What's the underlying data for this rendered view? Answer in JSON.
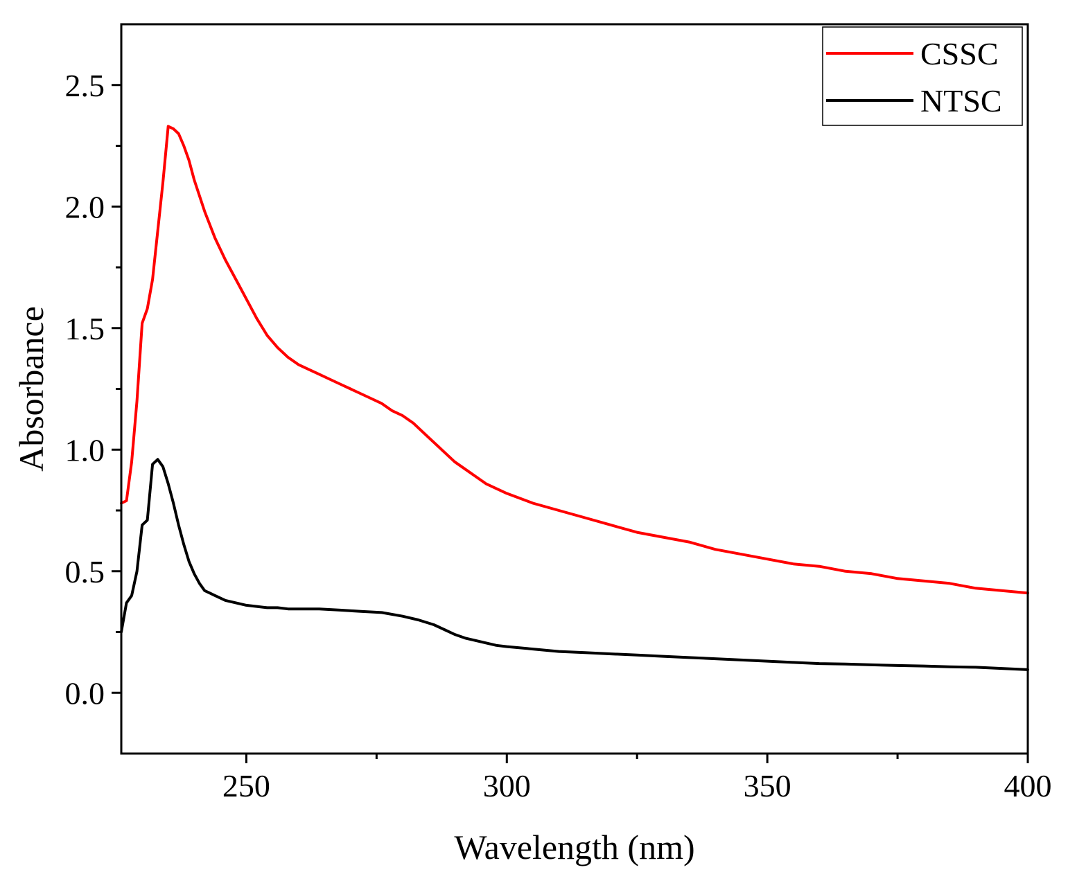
{
  "chart_data": {
    "type": "line",
    "title": "",
    "xlabel": "Wavelength (nm)",
    "ylabel": "Absorbance",
    "xlim": [
      226,
      400
    ],
    "ylim": [
      -0.25,
      2.75
    ],
    "x_major_ticks": [
      250,
      300,
      350,
      400
    ],
    "x_minor_ticks": [
      275,
      325,
      375
    ],
    "y_major_ticks": [
      0.0,
      0.5,
      1.0,
      1.5,
      2.0,
      2.5
    ],
    "y_minor_ticks": [
      0.25,
      0.75,
      1.25,
      1.75,
      2.25
    ],
    "x_tick_labels": [
      "250",
      "300",
      "350",
      "400"
    ],
    "y_tick_labels": [
      "0.0",
      "0.5",
      "1.0",
      "1.5",
      "2.0",
      "2.5"
    ],
    "grid": false,
    "legend_position": "top-right",
    "series": [
      {
        "name": "CSSC",
        "color": "#ff0000",
        "points": [
          [
            226,
            0.78
          ],
          [
            227,
            0.79
          ],
          [
            228,
            0.95
          ],
          [
            229,
            1.2
          ],
          [
            230,
            1.52
          ],
          [
            231,
            1.58
          ],
          [
            232,
            1.7
          ],
          [
            233,
            1.9
          ],
          [
            234,
            2.1
          ],
          [
            235,
            2.33
          ],
          [
            236,
            2.32
          ],
          [
            237,
            2.3
          ],
          [
            238,
            2.25
          ],
          [
            239,
            2.19
          ],
          [
            240,
            2.11
          ],
          [
            242,
            1.98
          ],
          [
            244,
            1.87
          ],
          [
            246,
            1.78
          ],
          [
            248,
            1.7
          ],
          [
            250,
            1.62
          ],
          [
            252,
            1.54
          ],
          [
            254,
            1.47
          ],
          [
            256,
            1.42
          ],
          [
            258,
            1.38
          ],
          [
            260,
            1.35
          ],
          [
            262,
            1.33
          ],
          [
            264,
            1.31
          ],
          [
            266,
            1.29
          ],
          [
            268,
            1.27
          ],
          [
            270,
            1.25
          ],
          [
            272,
            1.23
          ],
          [
            274,
            1.21
          ],
          [
            276,
            1.19
          ],
          [
            278,
            1.16
          ],
          [
            280,
            1.14
          ],
          [
            282,
            1.11
          ],
          [
            284,
            1.07
          ],
          [
            286,
            1.03
          ],
          [
            288,
            0.99
          ],
          [
            290,
            0.95
          ],
          [
            292,
            0.92
          ],
          [
            294,
            0.89
          ],
          [
            296,
            0.86
          ],
          [
            298,
            0.84
          ],
          [
            300,
            0.82
          ],
          [
            305,
            0.78
          ],
          [
            310,
            0.75
          ],
          [
            315,
            0.72
          ],
          [
            320,
            0.69
          ],
          [
            325,
            0.66
          ],
          [
            330,
            0.64
          ],
          [
            335,
            0.62
          ],
          [
            340,
            0.59
          ],
          [
            345,
            0.57
          ],
          [
            350,
            0.55
          ],
          [
            355,
            0.53
          ],
          [
            360,
            0.52
          ],
          [
            365,
            0.5
          ],
          [
            370,
            0.49
          ],
          [
            375,
            0.47
          ],
          [
            380,
            0.46
          ],
          [
            385,
            0.45
          ],
          [
            390,
            0.43
          ],
          [
            395,
            0.42
          ],
          [
            400,
            0.41
          ]
        ]
      },
      {
        "name": "NTSC",
        "color": "#000000",
        "points": [
          [
            226,
            0.25
          ],
          [
            227,
            0.37
          ],
          [
            228,
            0.4
          ],
          [
            229,
            0.5
          ],
          [
            230,
            0.69
          ],
          [
            231,
            0.71
          ],
          [
            232,
            0.94
          ],
          [
            233,
            0.96
          ],
          [
            234,
            0.93
          ],
          [
            235,
            0.86
          ],
          [
            236,
            0.78
          ],
          [
            237,
            0.69
          ],
          [
            238,
            0.61
          ],
          [
            239,
            0.54
          ],
          [
            240,
            0.49
          ],
          [
            241,
            0.45
          ],
          [
            242,
            0.42
          ],
          [
            243,
            0.41
          ],
          [
            244,
            0.4
          ],
          [
            246,
            0.38
          ],
          [
            248,
            0.37
          ],
          [
            250,
            0.36
          ],
          [
            252,
            0.355
          ],
          [
            254,
            0.35
          ],
          [
            256,
            0.35
          ],
          [
            258,
            0.345
          ],
          [
            260,
            0.345
          ],
          [
            264,
            0.345
          ],
          [
            268,
            0.34
          ],
          [
            272,
            0.335
          ],
          [
            276,
            0.33
          ],
          [
            280,
            0.315
          ],
          [
            283,
            0.3
          ],
          [
            286,
            0.28
          ],
          [
            288,
            0.26
          ],
          [
            290,
            0.24
          ],
          [
            292,
            0.225
          ],
          [
            294,
            0.215
          ],
          [
            296,
            0.205
          ],
          [
            298,
            0.195
          ],
          [
            300,
            0.19
          ],
          [
            305,
            0.18
          ],
          [
            310,
            0.17
          ],
          [
            315,
            0.165
          ],
          [
            320,
            0.16
          ],
          [
            325,
            0.155
          ],
          [
            330,
            0.15
          ],
          [
            335,
            0.145
          ],
          [
            340,
            0.14
          ],
          [
            345,
            0.135
          ],
          [
            350,
            0.13
          ],
          [
            355,
            0.125
          ],
          [
            360,
            0.12
          ],
          [
            365,
            0.118
          ],
          [
            370,
            0.115
          ],
          [
            375,
            0.112
          ],
          [
            380,
            0.11
          ],
          [
            385,
            0.107
          ],
          [
            390,
            0.105
          ],
          [
            395,
            0.1
          ],
          [
            400,
            0.095
          ]
        ]
      }
    ]
  }
}
